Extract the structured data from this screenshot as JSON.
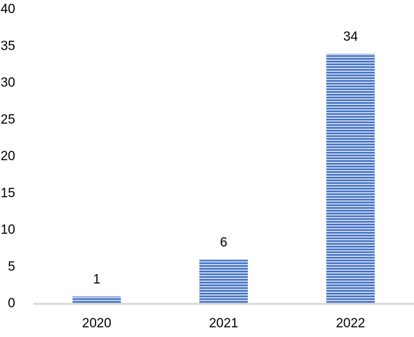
{
  "chart_data": {
    "type": "bar",
    "categories": [
      "2020",
      "2021",
      "2022"
    ],
    "values": [
      1,
      6,
      34
    ],
    "color": "#4472c4",
    "ylim": [
      0,
      40
    ],
    "yticks": [
      0,
      5,
      10,
      15,
      20,
      25,
      30,
      35,
      40
    ],
    "grid": false,
    "data_labels": true
  }
}
